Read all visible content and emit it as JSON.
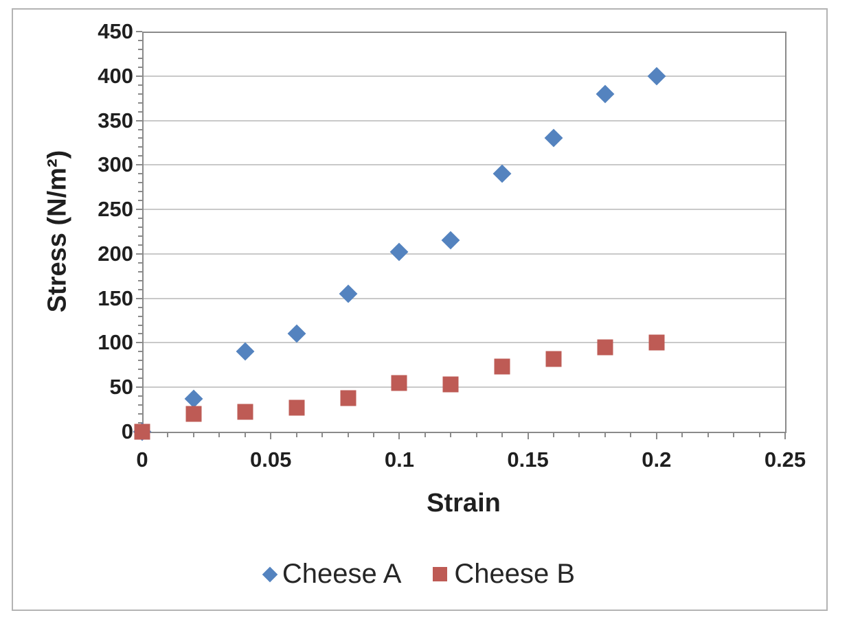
{
  "chart_data": {
    "type": "scatter",
    "title": "",
    "xlabel": "Strain",
    "ylabel": "Stress (N/m²)",
    "xlim": [
      0,
      0.25
    ],
    "ylim": [
      0,
      450
    ],
    "x_major_step": 0.05,
    "x_minor_step": 0.01,
    "y_major_step": 50,
    "y_minor_step": 10,
    "x_tick_labels": [
      "0",
      "0.05",
      "0.1",
      "0.15",
      "0.2",
      "0.25"
    ],
    "y_tick_labels": [
      "0",
      "50",
      "100",
      "150",
      "200",
      "250",
      "300",
      "350",
      "400",
      "450"
    ],
    "grid": "horizontal-major-only",
    "legend_position": "bottom-center",
    "x": [
      0,
      0.02,
      0.04,
      0.06,
      0.08,
      0.1,
      0.12,
      0.14,
      0.16,
      0.18,
      0.2
    ],
    "series": [
      {
        "name": "Cheese A",
        "marker": "diamond",
        "color": "#5483BF",
        "values": [
          0,
          37,
          90,
          110,
          155,
          202,
          215,
          290,
          330,
          380,
          400
        ]
      },
      {
        "name": "Cheese B",
        "marker": "square",
        "color": "#BE5B55",
        "values": [
          0,
          20,
          22,
          27,
          38,
          55,
          53,
          73,
          82,
          95,
          100
        ]
      }
    ]
  },
  "legend": {
    "items": [
      {
        "label": "Cheese A",
        "marker": "diamond",
        "color": "#5483BF"
      },
      {
        "label": "Cheese B",
        "marker": "square",
        "color": "#BE5B55"
      }
    ]
  },
  "colors": {
    "series_a": "#5483BF",
    "series_b": "#BE5B55",
    "gridline": "#c9c9c9",
    "axis": "#8a8a8a",
    "outer_frame": "#b3b3b3",
    "text": "#1f1f1f",
    "background": "#ffffff"
  }
}
